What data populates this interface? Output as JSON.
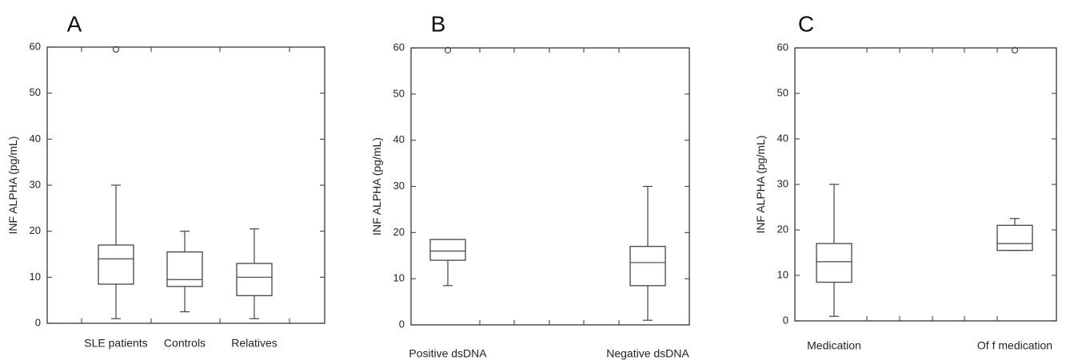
{
  "chart_data": [
    {
      "type": "box",
      "panel_label": "A",
      "ylabel": "INF ALPHA (pg/mL)",
      "ylim": [
        0,
        60
      ],
      "yticks": [
        0,
        10,
        20,
        30,
        40,
        50,
        60
      ],
      "categories": [
        "SLE patients",
        "Controls",
        "Relatives"
      ],
      "boxes": [
        {
          "min": 1,
          "q1": 8.5,
          "median": 14,
          "q3": 17,
          "max": 30,
          "outliers": [
            59.5
          ]
        },
        {
          "min": 2.5,
          "q1": 8,
          "median": 9.5,
          "q3": 15.5,
          "max": 20,
          "outliers": []
        },
        {
          "min": 1,
          "q1": 6,
          "median": 10,
          "q3": 13,
          "max": 20.5,
          "outliers": []
        }
      ]
    },
    {
      "type": "box",
      "panel_label": "B",
      "ylabel": "INF ALPHA (pg/mL)",
      "ylim": [
        0,
        60
      ],
      "yticks": [
        0,
        10,
        20,
        30,
        40,
        50,
        60
      ],
      "categories": [
        "Positive dsDNA",
        "Negative dsDNA"
      ],
      "boxes": [
        {
          "min": 8.5,
          "q1": 14,
          "median": 16,
          "q3": 18.5,
          "max": 18.5,
          "outliers": [
            59.5
          ]
        },
        {
          "min": 1,
          "q1": 8.5,
          "median": 13.5,
          "q3": 17,
          "max": 30,
          "outliers": []
        }
      ]
    },
    {
      "type": "box",
      "panel_label": "C",
      "ylabel": "INF ALPHA (pg/mL)",
      "ylim": [
        0,
        60
      ],
      "yticks": [
        0,
        10,
        20,
        30,
        40,
        50,
        60
      ],
      "categories": [
        "Medication",
        "Of f medication"
      ],
      "boxes": [
        {
          "min": 1,
          "q1": 8.5,
          "median": 13,
          "q3": 17,
          "max": 30,
          "outliers": []
        },
        {
          "min": 15.5,
          "q1": 15.5,
          "median": 17,
          "q3": 21,
          "max": 22.5,
          "outliers": [
            59.5
          ]
        }
      ]
    }
  ]
}
